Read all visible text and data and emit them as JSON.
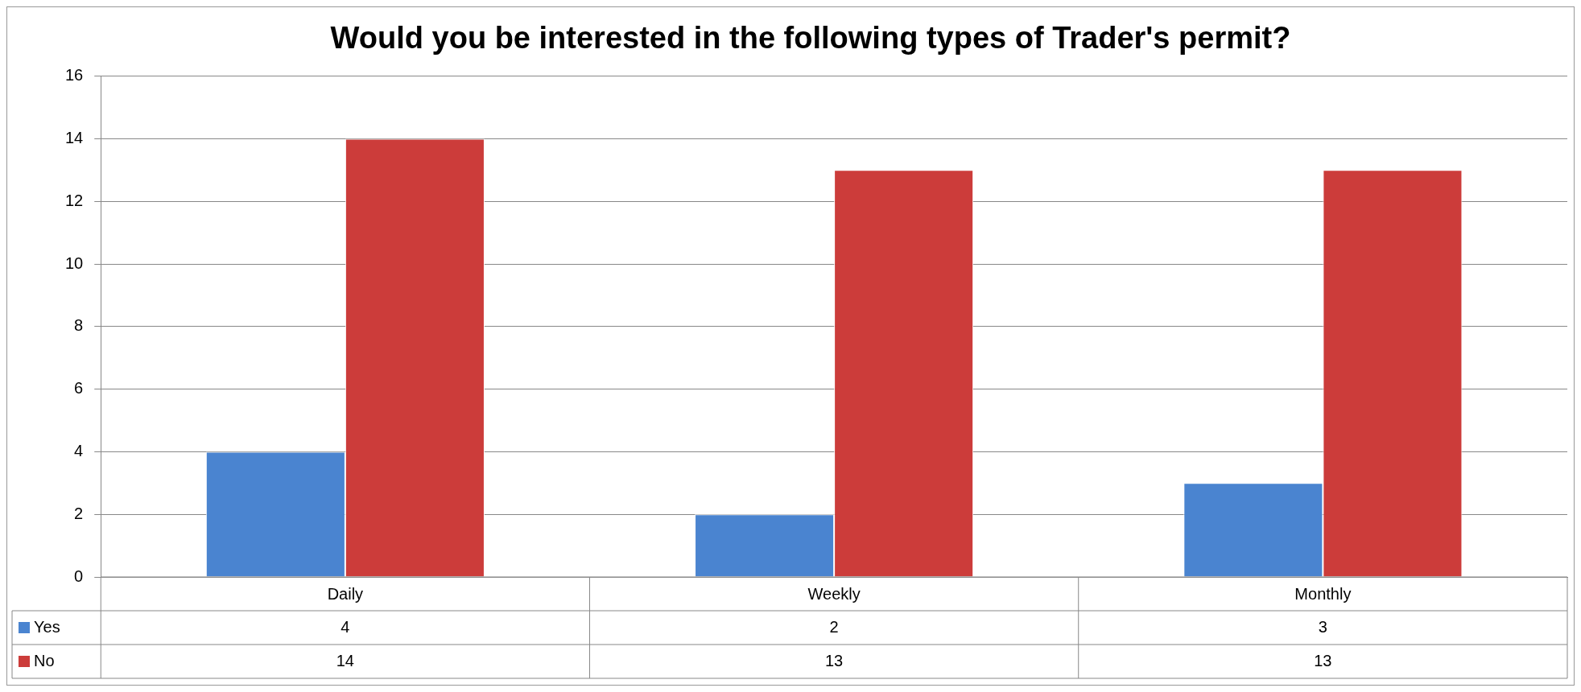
{
  "chart_data": {
    "type": "bar",
    "title": "Would you be interested in the following types of Trader's permit?",
    "categories": [
      "Daily",
      "Weekly",
      "Monthly"
    ],
    "series": [
      {
        "name": "Yes",
        "color": "#4a84d0",
        "values": [
          4,
          2,
          3
        ]
      },
      {
        "name": "No",
        "color": "#cc3c3a",
        "values": [
          14,
          13,
          13
        ]
      }
    ],
    "ylim": [
      0,
      16
    ],
    "yticks": [
      0,
      2,
      4,
      6,
      8,
      10,
      12,
      14,
      16
    ],
    "grid": "y",
    "legend": "bottom left",
    "data_labels": true
  }
}
